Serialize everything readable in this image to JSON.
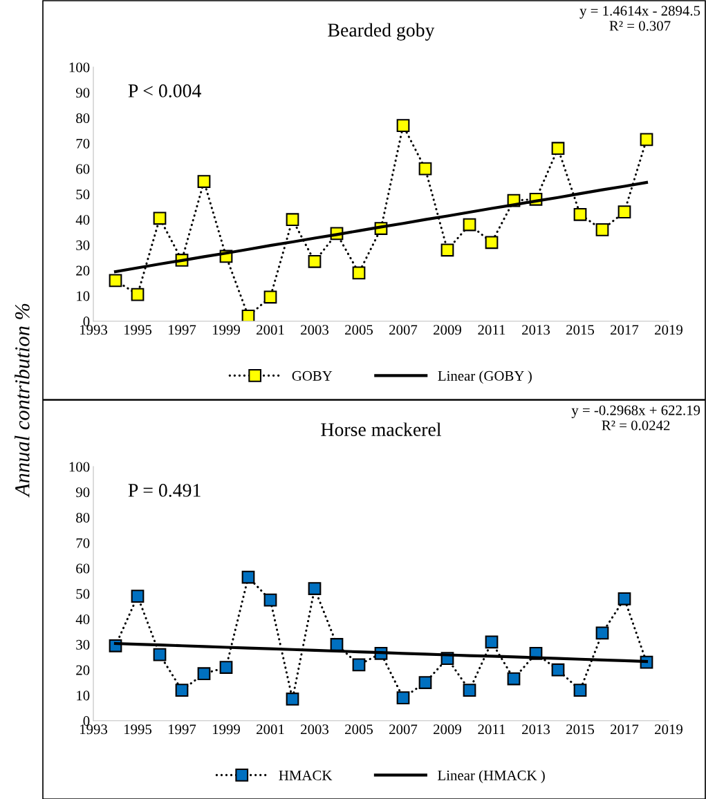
{
  "chart_data": [
    {
      "type": "line",
      "title": "Bearded goby",
      "ylabel": "Annual contribution %",
      "x": [
        1994,
        1995,
        1996,
        1997,
        1998,
        1999,
        2000,
        2001,
        2002,
        2003,
        2004,
        2005,
        2006,
        2007,
        2008,
        2009,
        2010,
        2011,
        2012,
        2013,
        2014,
        2015,
        2016,
        2017,
        2018
      ],
      "series": [
        {
          "name": "GOBY",
          "color": "#ffff00",
          "marker": "square",
          "line_style": "dotted",
          "values": [
            16,
            10.5,
            40.5,
            24,
            55,
            25.5,
            2,
            9.5,
            40,
            23.5,
            34.5,
            19,
            36.5,
            77,
            60,
            28,
            38,
            31,
            47.5,
            48,
            68,
            42,
            36,
            43,
            71.5
          ]
        },
        {
          "name": "Linear (GOBY )",
          "color": "#000000",
          "marker": "none",
          "line_style": "solid",
          "values": [
            19.5,
            21.0,
            22.5,
            23.9,
            25.4,
            26.8,
            28.3,
            29.8,
            31.2,
            32.7,
            34.1,
            35.6,
            37.1,
            38.5,
            40.0,
            41.4,
            42.9,
            44.4,
            45.8,
            47.3,
            48.7,
            50.2,
            51.7,
            53.1,
            54.6
          ]
        }
      ],
      "xlim": [
        1993,
        2019
      ],
      "xticks": [
        1993,
        1995,
        1997,
        1999,
        2001,
        2003,
        2005,
        2007,
        2009,
        2011,
        2013,
        2015,
        2017,
        2019
      ],
      "ylim": [
        0,
        100
      ],
      "yticks": [
        0,
        10,
        20,
        30,
        40,
        50,
        60,
        70,
        80,
        90,
        100
      ],
      "annotations": [
        "y = 1.4614x - 2894.5\nR² = 0.307",
        "P < 0.004"
      ],
      "legend": "bottom",
      "grid": false
    },
    {
      "type": "line",
      "title": "Horse mackerel",
      "x": [
        1994,
        1995,
        1996,
        1997,
        1998,
        1999,
        2000,
        2001,
        2002,
        2003,
        2004,
        2005,
        2006,
        2007,
        2008,
        2009,
        2010,
        2011,
        2012,
        2013,
        2014,
        2015,
        2016,
        2017,
        2018
      ],
      "series": [
        {
          "name": "HMACK",
          "color": "#0070c0",
          "marker": "square",
          "line_style": "dotted",
          "values": [
            29.5,
            49,
            26,
            12,
            18.5,
            21,
            56.5,
            47.5,
            8.5,
            52,
            30,
            22,
            26.5,
            9,
            15,
            24.5,
            12,
            31,
            16.5,
            26.5,
            20,
            12,
            34.5,
            48,
            23
          ]
        },
        {
          "name": "Linear (HMACK )",
          "color": "#000000",
          "marker": "none",
          "line_style": "solid",
          "values": [
            30.4,
            30.1,
            29.8,
            29.5,
            29.2,
            28.9,
            28.6,
            28.3,
            28.0,
            27.7,
            27.4,
            27.1,
            26.8,
            26.5,
            26.2,
            25.9,
            25.6,
            25.4,
            25.1,
            24.8,
            24.5,
            24.2,
            23.9,
            23.6,
            23.3
          ]
        }
      ],
      "xlim": [
        1993,
        2019
      ],
      "xticks": [
        1993,
        1995,
        1997,
        1999,
        2001,
        2003,
        2005,
        2007,
        2009,
        2011,
        2013,
        2015,
        2017,
        2019
      ],
      "ylim": [
        0,
        100
      ],
      "yticks": [
        0,
        10,
        20,
        30,
        40,
        50,
        60,
        70,
        80,
        90,
        100
      ],
      "annotations": [
        "y = -0.2968x + 622.19\nR² = 0.0242",
        "P = 0.491"
      ],
      "legend": "bottom",
      "grid": false
    }
  ]
}
